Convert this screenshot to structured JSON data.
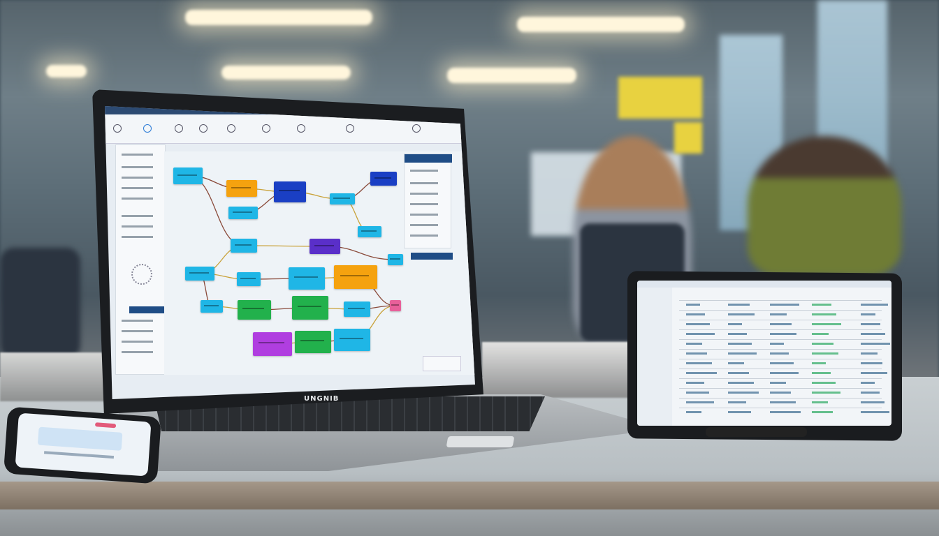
{
  "scene": {
    "kind": "office desk with laptop, tablet and phone"
  },
  "laptop": {
    "logo_text": "UNGNIB",
    "app": {
      "title_bar_color": "#2c4a72",
      "panel_header_color": "#1f4d86",
      "diagram_nodes": [
        {
          "color": "#1fb6e6"
        },
        {
          "color": "#f5a20f"
        },
        {
          "color": "#1fb6e6"
        },
        {
          "color": "#1a3fc4"
        },
        {
          "color": "#1fb6e6"
        },
        {
          "color": "#1a3fc4"
        },
        {
          "color": "#1fb6e6"
        },
        {
          "color": "#1fb6e6"
        },
        {
          "color": "#5a2fc9"
        },
        {
          "color": "#1fb6e6"
        },
        {
          "color": "#1fb6e6"
        },
        {
          "color": "#1fb6e6"
        },
        {
          "color": "#1fb6e6"
        },
        {
          "color": "#f5a20f"
        },
        {
          "color": "#1fb6e6"
        },
        {
          "color": "#22b14c"
        },
        {
          "color": "#22b14c"
        },
        {
          "color": "#1fb6e6"
        },
        {
          "color": "#e8609a"
        },
        {
          "color": "#b03ee0"
        },
        {
          "color": "#22b14c"
        },
        {
          "color": "#1fb6e6"
        }
      ],
      "connector_colors": [
        "#8a4a3a",
        "#c9a23a"
      ]
    }
  },
  "tablet": {
    "content": "spreadsheet-list"
  },
  "phone": {
    "content": "app-screen"
  }
}
